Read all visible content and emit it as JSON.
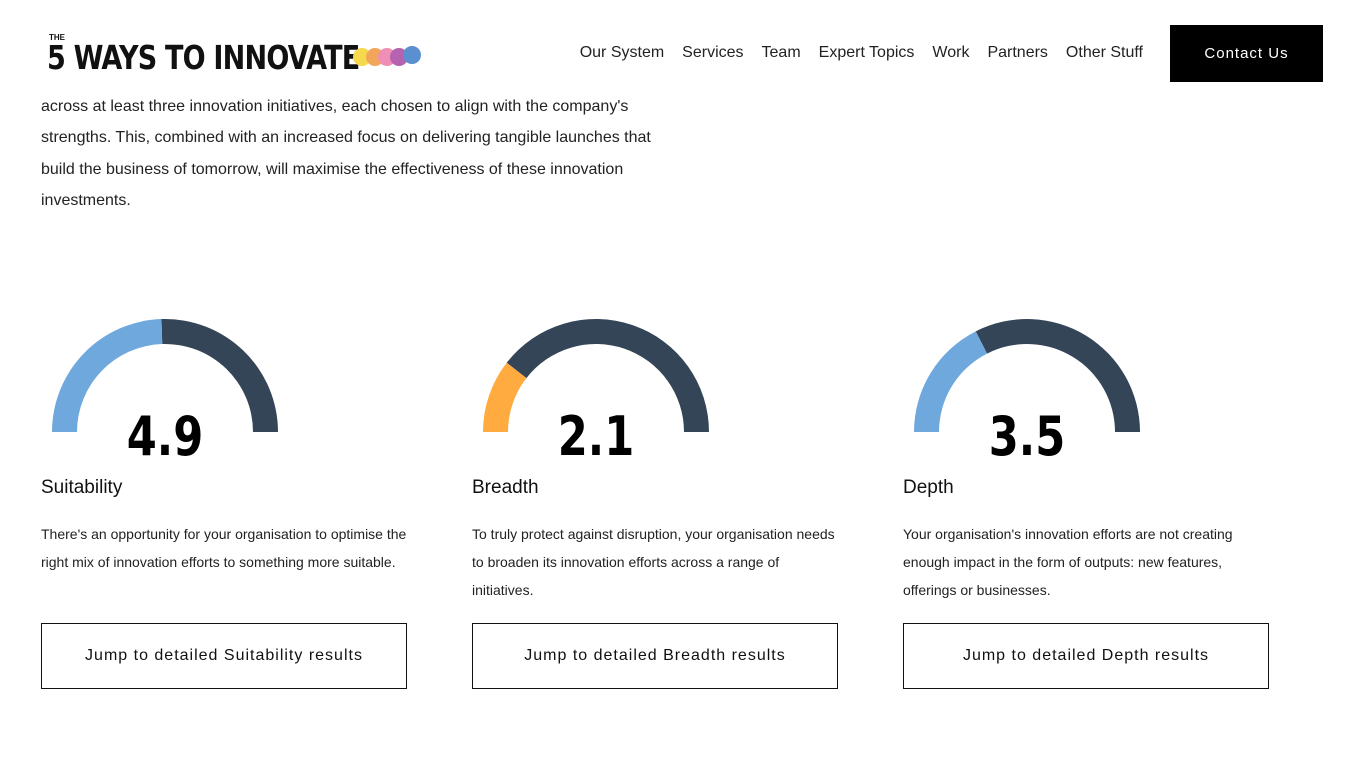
{
  "header": {
    "logo_small": "THE",
    "logo": "5 WAYS TO INNOVATE",
    "nav": [
      "Our System",
      "Services",
      "Team",
      "Expert Topics",
      "Work",
      "Partners",
      "Other Stuff"
    ],
    "cta": "Contact Us"
  },
  "intro": "across at least three innovation initiatives, each chosen to align with the company's strengths. This, combined with an increased focus on delivering tangible launches that build the business of tomorrow, will maximise the effectiveness of these innovation investments.",
  "gauges": [
    {
      "value": 4.9,
      "range": [
        0,
        10
      ],
      "color": "#6fa8dc",
      "track_color": "#344558",
      "title": "Suitability",
      "text": "There's an opportunity for your organisation to optimise the right mix of innovation efforts to something more suitable.",
      "button": "Jump to detailed Suitability results"
    },
    {
      "value": 2.1,
      "range": [
        0,
        10
      ],
      "color": "#ffab40",
      "track_color": "#344558",
      "title": "Breadth",
      "text": "To truly protect against disruption, your organisation needs to broaden its innovation efforts across a range of initiatives.",
      "button": "Jump to detailed Breadth results"
    },
    {
      "value": 3.5,
      "range": [
        0,
        10
      ],
      "color": "#6fa8dc",
      "track_color": "#344558",
      "title": "Depth",
      "text": "Your organisation's innovation efforts are not creating enough impact in the form of outputs: new features, offerings or businesses.",
      "button": "Jump to detailed Depth results"
    }
  ]
}
